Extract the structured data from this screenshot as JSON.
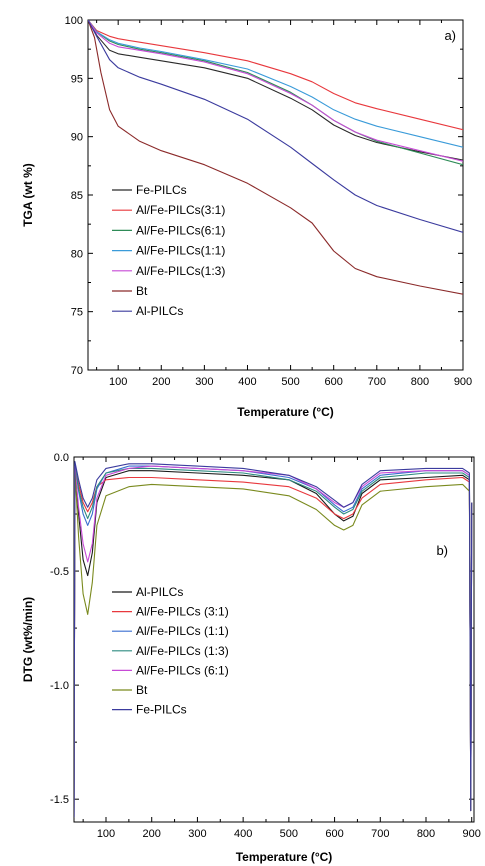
{
  "chart_data": [
    {
      "id": "a",
      "type": "line",
      "panel_label": "a)",
      "xlabel": "Temperature (°C)",
      "ylabel": "TGA (wt %)",
      "xlim": [
        30,
        900
      ],
      "ylim": [
        70,
        100
      ],
      "xticks": [
        100,
        200,
        300,
        400,
        500,
        600,
        700,
        800,
        900
      ],
      "yticks": [
        70,
        75,
        80,
        85,
        90,
        95,
        100
      ],
      "legend_position": "bottom-left",
      "series": [
        {
          "name": "Fe-PILCs",
          "color": "#2a2a2a",
          "x": [
            30,
            50,
            80,
            100,
            150,
            200,
            300,
            400,
            500,
            550,
            600,
            650,
            700,
            800,
            900
          ],
          "y": [
            100,
            98.7,
            97.4,
            97.1,
            96.8,
            96.5,
            95.9,
            95.0,
            93.3,
            92.3,
            91.0,
            90.1,
            89.5,
            88.7,
            88.0
          ]
        },
        {
          "name": "Al/Fe-PILCs(3:1)",
          "color": "#e8383d",
          "x": [
            30,
            50,
            80,
            100,
            150,
            200,
            300,
            400,
            500,
            550,
            600,
            650,
            700,
            800,
            900
          ],
          "y": [
            100,
            99.1,
            98.6,
            98.4,
            98.1,
            97.8,
            97.2,
            96.5,
            95.4,
            94.7,
            93.7,
            92.9,
            92.4,
            91.5,
            90.6
          ]
        },
        {
          "name": "Al/Fe-PILCs(6:1)",
          "color": "#2e8b57",
          "x": [
            30,
            50,
            80,
            100,
            150,
            200,
            300,
            400,
            500,
            550,
            600,
            650,
            700,
            800,
            900
          ],
          "y": [
            100,
            99.0,
            98.2,
            97.9,
            97.5,
            97.2,
            96.5,
            95.5,
            93.8,
            92.7,
            91.4,
            90.4,
            89.6,
            88.6,
            87.6
          ]
        },
        {
          "name": "Al/Fe-PILCs(1:1)",
          "color": "#3a9bd9",
          "x": [
            30,
            50,
            80,
            100,
            150,
            200,
            300,
            400,
            500,
            550,
            600,
            650,
            700,
            800,
            900
          ],
          "y": [
            100,
            99.0,
            98.3,
            98.0,
            97.6,
            97.3,
            96.6,
            95.8,
            94.3,
            93.4,
            92.3,
            91.5,
            90.9,
            90.0,
            89.1
          ]
        },
        {
          "name": "Al/Fe-PILCs(1:3)",
          "color": "#c74ad6",
          "x": [
            30,
            50,
            80,
            100,
            150,
            200,
            300,
            400,
            500,
            550,
            600,
            650,
            700,
            800,
            900
          ],
          "y": [
            100,
            98.9,
            98.0,
            97.7,
            97.4,
            97.1,
            96.4,
            95.4,
            93.7,
            92.7,
            91.4,
            90.4,
            89.7,
            88.8,
            87.9
          ]
        },
        {
          "name": "Bt",
          "color": "#8b2a2a",
          "x": [
            30,
            45,
            60,
            80,
            100,
            150,
            200,
            300,
            400,
            500,
            550,
            600,
            650,
            700,
            800,
            900
          ],
          "y": [
            100,
            98.5,
            95.5,
            92.3,
            90.9,
            89.6,
            88.8,
            87.6,
            86.0,
            83.9,
            82.6,
            80.2,
            78.7,
            78.0,
            77.2,
            76.5
          ]
        },
        {
          "name": "Al-PILCs",
          "color": "#3b3b9e",
          "x": [
            30,
            50,
            80,
            100,
            150,
            200,
            300,
            400,
            500,
            550,
            600,
            650,
            700,
            800,
            900
          ],
          "y": [
            100,
            98.6,
            96.6,
            95.9,
            95.1,
            94.5,
            93.2,
            91.5,
            89.1,
            87.7,
            86.3,
            85.0,
            84.1,
            82.9,
            81.8
          ]
        }
      ]
    },
    {
      "id": "b",
      "type": "line",
      "panel_label": "b)",
      "xlabel": "Temperature (°C)",
      "ylabel": "DTG (wt%/min)",
      "xlim": [
        30,
        905
      ],
      "ylim": [
        -1.6,
        0
      ],
      "xticks": [
        100,
        200,
        300,
        400,
        500,
        600,
        700,
        800,
        900
      ],
      "xtick_labels": [
        "100",
        "200",
        "300",
        "400",
        "500",
        "600",
        "700",
        "800",
        "900"
      ],
      "yticks": [
        0,
        -0.5,
        -1.0,
        -1.5
      ],
      "ytick_labels": [
        "0.0",
        "-0.5",
        "-1.0",
        "-1.5"
      ],
      "legend_position": "middle-left",
      "series": [
        {
          "name": "Al-PILCs",
          "color": "#1a1a1a",
          "x": [
            30,
            32,
            40,
            50,
            60,
            70,
            80,
            100,
            150,
            200,
            300,
            400,
            500,
            560,
            600,
            620,
            640,
            660,
            700,
            800,
            880,
            895,
            898,
            900
          ],
          "y": [
            -1.58,
            -0.05,
            -0.25,
            -0.45,
            -0.52,
            -0.42,
            -0.2,
            -0.09,
            -0.06,
            -0.06,
            -0.07,
            -0.08,
            -0.1,
            -0.16,
            -0.25,
            -0.28,
            -0.26,
            -0.16,
            -0.1,
            -0.09,
            -0.08,
            -0.1,
            -1.55,
            -0.2
          ]
        },
        {
          "name": "Al/Fe-PILCs (3:1)",
          "color": "#e8383d",
          "x": [
            30,
            32,
            40,
            50,
            60,
            70,
            80,
            100,
            150,
            200,
            300,
            400,
            500,
            560,
            600,
            620,
            640,
            660,
            700,
            800,
            880,
            895,
            898,
            900
          ],
          "y": [
            -1.58,
            -0.04,
            -0.12,
            -0.2,
            -0.24,
            -0.2,
            -0.13,
            -0.1,
            -0.09,
            -0.09,
            -0.1,
            -0.11,
            -0.13,
            -0.18,
            -0.25,
            -0.27,
            -0.25,
            -0.18,
            -0.12,
            -0.1,
            -0.09,
            -0.11,
            -1.55,
            -0.2
          ]
        },
        {
          "name": "Al/Fe-PILCs (1:1)",
          "color": "#3a6fd0",
          "x": [
            30,
            32,
            40,
            50,
            60,
            70,
            80,
            100,
            150,
            200,
            300,
            400,
            500,
            560,
            600,
            620,
            640,
            660,
            700,
            800,
            880,
            895,
            898,
            900
          ],
          "y": [
            -1.58,
            -0.03,
            -0.15,
            -0.25,
            -0.3,
            -0.25,
            -0.14,
            -0.07,
            -0.04,
            -0.04,
            -0.05,
            -0.06,
            -0.09,
            -0.14,
            -0.21,
            -0.24,
            -0.22,
            -0.14,
            -0.08,
            -0.06,
            -0.06,
            -0.08,
            -1.55,
            -0.2
          ]
        },
        {
          "name": "Al/Fe-PILCs (1:3)",
          "color": "#2e8b80",
          "x": [
            30,
            32,
            40,
            50,
            60,
            70,
            80,
            100,
            150,
            200,
            300,
            400,
            500,
            560,
            600,
            620,
            640,
            660,
            700,
            800,
            880,
            895,
            898,
            900
          ],
          "y": [
            -1.58,
            -0.03,
            -0.14,
            -0.22,
            -0.27,
            -0.22,
            -0.13,
            -0.07,
            -0.05,
            -0.05,
            -0.06,
            -0.07,
            -0.1,
            -0.15,
            -0.22,
            -0.25,
            -0.23,
            -0.15,
            -0.09,
            -0.07,
            -0.07,
            -0.09,
            -1.55,
            -0.2
          ]
        },
        {
          "name": "Al/Fe-PILCs (6:1)",
          "color": "#c74ad6",
          "x": [
            30,
            32,
            40,
            50,
            60,
            70,
            80,
            100,
            150,
            200,
            300,
            400,
            500,
            560,
            600,
            620,
            640,
            660,
            700,
            800,
            880,
            895,
            898,
            900
          ],
          "y": [
            -1.58,
            -0.04,
            -0.22,
            -0.38,
            -0.46,
            -0.38,
            -0.18,
            -0.08,
            -0.05,
            -0.04,
            -0.05,
            -0.06,
            -0.08,
            -0.14,
            -0.2,
            -0.22,
            -0.2,
            -0.13,
            -0.07,
            -0.06,
            -0.06,
            -0.08,
            -1.55,
            -0.2
          ]
        },
        {
          "name": "Bt",
          "color": "#7a8a1e",
          "x": [
            30,
            32,
            40,
            50,
            60,
            70,
            80,
            100,
            150,
            200,
            300,
            400,
            500,
            560,
            600,
            620,
            640,
            660,
            700,
            800,
            880,
            895,
            898,
            900
          ],
          "y": [
            -1.58,
            -0.06,
            -0.35,
            -0.6,
            -0.69,
            -0.55,
            -0.3,
            -0.17,
            -0.13,
            -0.12,
            -0.13,
            -0.14,
            -0.17,
            -0.23,
            -0.3,
            -0.32,
            -0.3,
            -0.21,
            -0.15,
            -0.13,
            -0.12,
            -0.15,
            -1.55,
            -0.2
          ]
        },
        {
          "name": "Fe-PILCs",
          "color": "#3b3b9e",
          "x": [
            30,
            32,
            40,
            50,
            60,
            70,
            80,
            100,
            150,
            200,
            300,
            400,
            500,
            560,
            600,
            620,
            640,
            660,
            700,
            800,
            880,
            895,
            898,
            900
          ],
          "y": [
            -1.58,
            -0.02,
            -0.1,
            -0.18,
            -0.22,
            -0.18,
            -0.1,
            -0.05,
            -0.03,
            -0.03,
            -0.04,
            -0.05,
            -0.08,
            -0.13,
            -0.19,
            -0.22,
            -0.2,
            -0.12,
            -0.06,
            -0.05,
            -0.05,
            -0.07,
            -1.55,
            -0.2
          ]
        }
      ]
    }
  ]
}
